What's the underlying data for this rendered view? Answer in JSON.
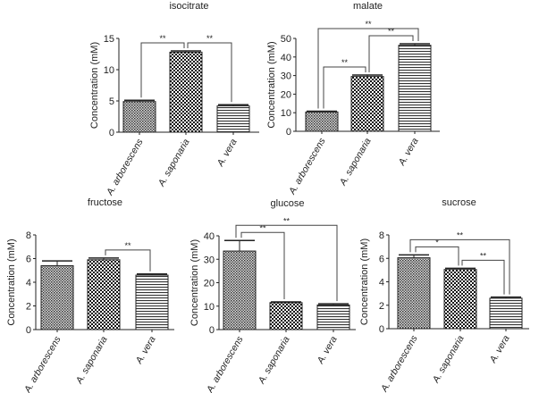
{
  "chart_data": [
    {
      "type": "bar",
      "title": "isocitrate",
      "ylabel": "Concentration (mM)",
      "ylim": [
        0,
        15
      ],
      "yticks": [
        0,
        5,
        10,
        15
      ],
      "categories": [
        "A. arborescens",
        "A. saponaria",
        "A. vera"
      ],
      "values": [
        4.9,
        12.8,
        4.2
      ],
      "errors": [
        0.2,
        0.2,
        0.2
      ],
      "significance": [
        {
          "from": 0,
          "to": 1,
          "label": "**"
        },
        {
          "from": 1,
          "to": 2,
          "label": "**"
        }
      ]
    },
    {
      "type": "bar",
      "title": "malate",
      "ylabel": "Concentration (mM)",
      "ylim": [
        0,
        50
      ],
      "yticks": [
        0,
        10,
        20,
        30,
        40,
        50
      ],
      "categories": [
        "A. arborescens",
        "A. saponaria",
        "A. vera"
      ],
      "values": [
        10.4,
        29.5,
        46.3
      ],
      "errors": [
        0.4,
        0.8,
        0.8
      ],
      "significance": [
        {
          "from": 0,
          "to": 1,
          "label": "**"
        },
        {
          "from": 1,
          "to": 2,
          "label": "**"
        },
        {
          "from": 0,
          "to": 2,
          "label": "**"
        }
      ]
    },
    {
      "type": "bar",
      "title": "fructose",
      "ylabel": "Concentration (mM)",
      "ylim": [
        0,
        8
      ],
      "yticks": [
        0,
        2,
        4,
        6,
        8
      ],
      "categories": [
        "A. arborescens",
        "A. saponaria",
        "A. vera"
      ],
      "values": [
        5.4,
        5.9,
        4.6
      ],
      "errors": [
        0.4,
        0.15,
        0.1
      ],
      "significance": [
        {
          "from": 1,
          "to": 2,
          "label": "**"
        }
      ]
    },
    {
      "type": "bar",
      "title": "glucose",
      "ylabel": "Concentration (mM)",
      "ylim": [
        0,
        40
      ],
      "yticks": [
        0,
        10,
        20,
        30,
        40
      ],
      "categories": [
        "A. arborescens",
        "A. saponaria",
        "A. vera"
      ],
      "values": [
        33.5,
        11.5,
        10.5
      ],
      "errors": [
        4.5,
        0.3,
        0.5
      ],
      "significance": [
        {
          "from": 0,
          "to": 1,
          "label": "**"
        },
        {
          "from": 0,
          "to": 2,
          "label": "**"
        }
      ]
    },
    {
      "type": "bar",
      "title": "sucrose",
      "ylabel": "Concentration (mM)",
      "ylim": [
        0,
        8
      ],
      "yticks": [
        0,
        2,
        4,
        6,
        8
      ],
      "categories": [
        "A. arborescens",
        "A. saponaria",
        "A. vera"
      ],
      "values": [
        6.05,
        5.05,
        2.6
      ],
      "errors": [
        0.25,
        0.1,
        0.1
      ],
      "significance": [
        {
          "from": 0,
          "to": 1,
          "label": "*"
        },
        {
          "from": 1,
          "to": 2,
          "label": "**"
        },
        {
          "from": 0,
          "to": 2,
          "label": "**"
        }
      ]
    }
  ]
}
